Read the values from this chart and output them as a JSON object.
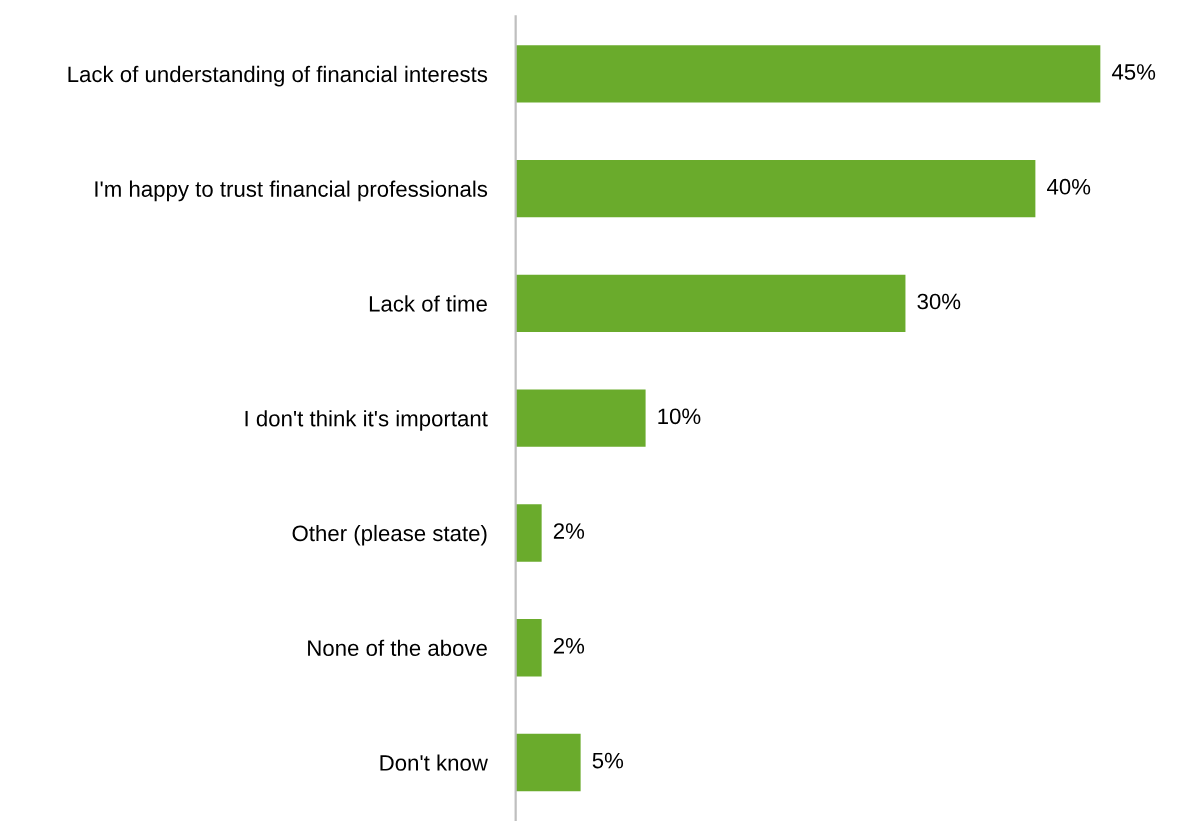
{
  "chart_data": {
    "type": "bar",
    "orientation": "horizontal",
    "categories": [
      "Lack of understanding of financial interests",
      "I'm happy to trust financial professionals",
      "Lack of time",
      "I don't think it's important",
      "Other (please state)",
      "None of the above",
      "Don't know"
    ],
    "values": [
      45,
      40,
      30,
      10,
      2,
      2,
      5
    ],
    "value_labels": [
      "45%",
      "40%",
      "30%",
      "10%",
      "2%",
      "2%",
      "5%"
    ],
    "color": "#6aab2c",
    "grid": false,
    "legend": false
  }
}
